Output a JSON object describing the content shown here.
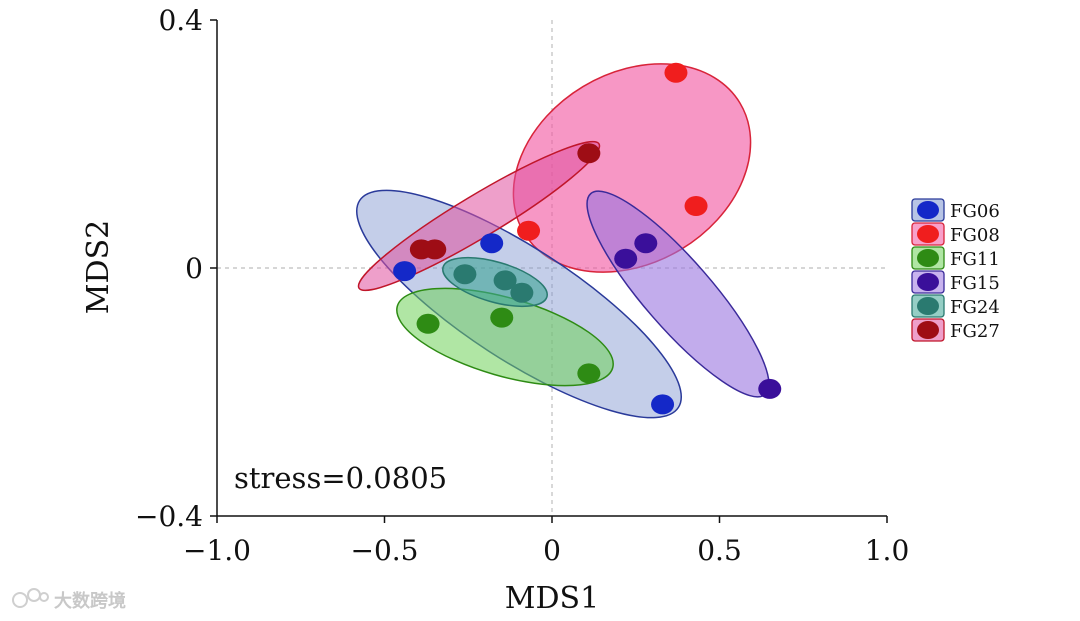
{
  "chart_data": {
    "type": "scatter",
    "title": "",
    "xlabel": "MDS1",
    "ylabel": "MDS2",
    "xlim": [
      -1.0,
      1.0
    ],
    "ylim": [
      -0.4,
      0.4
    ],
    "x_ticks": [
      "−1.0",
      "−0.5",
      "0",
      "0.5",
      "1.0"
    ],
    "x_tick_values": [
      -1.0,
      -0.5,
      0,
      0.5,
      1.0
    ],
    "y_ticks": [
      "0.4",
      "0",
      "−0.4"
    ],
    "y_tick_values": [
      0.4,
      0,
      -0.4
    ],
    "reference_lines": {
      "x": 0,
      "y": 0
    },
    "annotation": "stress=0.0805",
    "legend_position": "right",
    "series": [
      {
        "name": "FG06",
        "color": "#1428c8",
        "ellipse_fill": "#7c93cf",
        "ellipse_stroke": "#2a3a9a",
        "points": [
          [
            -0.44,
            -0.005
          ],
          [
            -0.18,
            0.04
          ],
          [
            0.33,
            -0.22
          ]
        ]
      },
      {
        "name": "FG08",
        "color": "#f01e1e",
        "ellipse_fill": "#f2529f",
        "ellipse_stroke": "#d8243a",
        "points": [
          [
            -0.07,
            0.06
          ],
          [
            0.37,
            0.315
          ],
          [
            0.43,
            0.1
          ]
        ]
      },
      {
        "name": "FG11",
        "color": "#2e8b14",
        "ellipse_fill": "#6fd25a",
        "ellipse_stroke": "#2e8b14",
        "points": [
          [
            -0.37,
            -0.09
          ],
          [
            -0.15,
            -0.08
          ],
          [
            0.11,
            -0.17
          ]
        ]
      },
      {
        "name": "FG15",
        "color": "#3a0f9a",
        "ellipse_fill": "#9a74e0",
        "ellipse_stroke": "#3a2a9a",
        "points": [
          [
            0.22,
            0.015
          ],
          [
            0.28,
            0.04
          ],
          [
            0.65,
            -0.195
          ]
        ]
      },
      {
        "name": "FG24",
        "color": "#2a7a70",
        "ellipse_fill": "#3ea596",
        "ellipse_stroke": "#2a7a70",
        "points": [
          [
            -0.26,
            -0.01
          ],
          [
            -0.14,
            -0.02
          ],
          [
            -0.09,
            -0.04
          ]
        ]
      },
      {
        "name": "FG27",
        "color": "#9e0d15",
        "ellipse_fill": "#e0509e",
        "ellipse_stroke": "#c0162a",
        "points": [
          [
            -0.39,
            0.03
          ],
          [
            -0.35,
            0.03
          ],
          [
            0.11,
            0.185
          ]
        ]
      }
    ]
  },
  "watermark": {
    "text": "大数跨境"
  }
}
